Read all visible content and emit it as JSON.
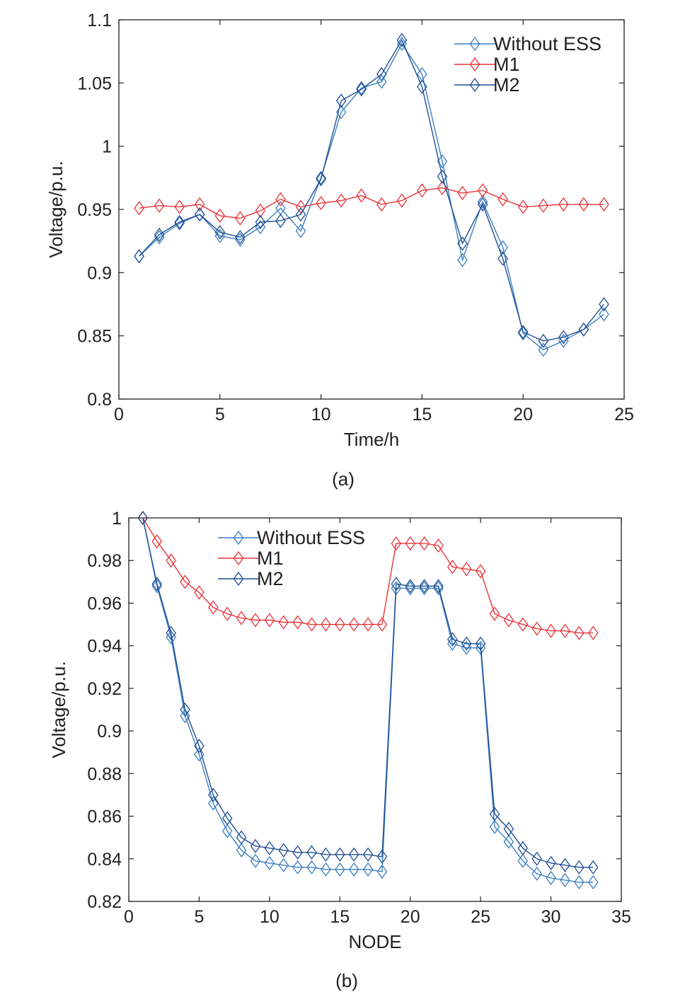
{
  "chart_data": [
    {
      "type": "line",
      "panel_label": "(a)",
      "xlabel": "Time/h",
      "ylabel": "Voltage/p.u.",
      "xlim": [
        0,
        25
      ],
      "ylim": [
        0.8,
        1.1
      ],
      "xticks": [
        "0",
        "5",
        "10",
        "15",
        "20",
        "25"
      ],
      "yticks": [
        "0.8",
        "0.85",
        "0.9",
        "0.95",
        "1",
        "1.05",
        "1.1"
      ],
      "marker": "diamond",
      "legend_position": "top-right",
      "x": [
        1,
        2,
        3,
        4,
        5,
        6,
        7,
        8,
        9,
        10,
        11,
        12,
        13,
        14,
        15,
        16,
        17,
        18,
        19,
        20,
        21,
        22,
        23,
        24
      ],
      "series": [
        {
          "name": "Without ESS",
          "color": "#3a7fc1",
          "values": [
            0.913,
            0.928,
            0.939,
            0.946,
            0.929,
            0.926,
            0.936,
            0.951,
            0.933,
            0.975,
            1.027,
            1.046,
            1.051,
            1.081,
            1.057,
            0.988,
            0.91,
            0.956,
            0.92,
            0.852,
            0.839,
            0.846,
            0.855,
            0.867
          ]
        },
        {
          "name": "M1",
          "color": "#e8343a",
          "values": [
            0.951,
            0.953,
            0.952,
            0.954,
            0.945,
            0.943,
            0.949,
            0.958,
            0.952,
            0.955,
            0.957,
            0.961,
            0.954,
            0.957,
            0.965,
            0.967,
            0.963,
            0.965,
            0.958,
            0.952,
            0.953,
            0.954,
            0.954,
            0.954
          ]
        },
        {
          "name": "M2",
          "color": "#1f4e95",
          "values": [
            0.913,
            0.93,
            0.94,
            0.946,
            0.932,
            0.928,
            0.94,
            0.941,
            0.946,
            0.974,
            1.036,
            1.045,
            1.057,
            1.084,
            1.047,
            0.976,
            0.923,
            0.954,
            0.911,
            0.853,
            0.846,
            0.849,
            0.855,
            0.875
          ]
        }
      ]
    },
    {
      "type": "line",
      "panel_label": "(b)",
      "xlabel": "NODE",
      "ylabel": "Voltage/p.u.",
      "xlim": [
        0,
        35
      ],
      "ylim": [
        0.82,
        1.0
      ],
      "xticks": [
        "0",
        "5",
        "10",
        "15",
        "20",
        "25",
        "30",
        "35"
      ],
      "yticks": [
        "0.82",
        "0.84",
        "0.86",
        "0.88",
        "0.9",
        "0.92",
        "0.94",
        "0.96",
        "0.98",
        "1"
      ],
      "marker": "diamond",
      "legend_position": "top-center",
      "x": [
        1,
        2,
        3,
        4,
        5,
        6,
        7,
        8,
        9,
        10,
        11,
        12,
        13,
        14,
        15,
        16,
        17,
        18,
        19,
        20,
        21,
        22,
        23,
        24,
        25,
        26,
        27,
        28,
        29,
        30,
        31,
        32,
        33
      ],
      "series": [
        {
          "name": "Without ESS",
          "color": "#3a7fc1",
          "values": [
            1.0,
            0.968,
            0.944,
            0.907,
            0.889,
            0.866,
            0.853,
            0.844,
            0.839,
            0.838,
            0.837,
            0.836,
            0.836,
            0.835,
            0.835,
            0.835,
            0.835,
            0.834,
            0.967,
            0.967,
            0.967,
            0.967,
            0.941,
            0.939,
            0.939,
            0.855,
            0.848,
            0.839,
            0.833,
            0.831,
            0.83,
            0.829,
            0.829
          ]
        },
        {
          "name": "M1",
          "color": "#e8343a",
          "values": [
            1.0,
            0.989,
            0.98,
            0.97,
            0.965,
            0.958,
            0.955,
            0.953,
            0.952,
            0.952,
            0.951,
            0.951,
            0.95,
            0.95,
            0.95,
            0.95,
            0.95,
            0.95,
            0.988,
            0.988,
            0.988,
            0.987,
            0.977,
            0.976,
            0.975,
            0.955,
            0.952,
            0.95,
            0.948,
            0.947,
            0.947,
            0.946,
            0.946
          ]
        },
        {
          "name": "M2",
          "color": "#1f4e95",
          "values": [
            1.0,
            0.969,
            0.946,
            0.91,
            0.893,
            0.87,
            0.859,
            0.85,
            0.846,
            0.845,
            0.844,
            0.843,
            0.843,
            0.842,
            0.842,
            0.842,
            0.842,
            0.841,
            0.969,
            0.968,
            0.968,
            0.968,
            0.943,
            0.941,
            0.941,
            0.861,
            0.854,
            0.845,
            0.84,
            0.838,
            0.837,
            0.836,
            0.836
          ]
        }
      ]
    }
  ]
}
